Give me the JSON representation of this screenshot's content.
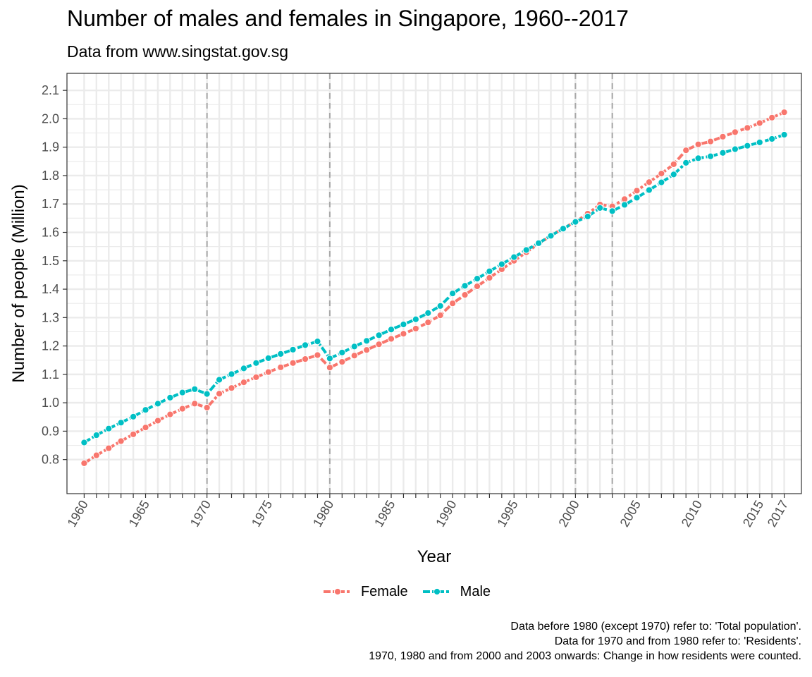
{
  "title": "Number of males and females in Singapore, 1960--2017",
  "subtitle": "Data from www.singstat.gov.sg",
  "caption": [
    "Data before 1980 (except 1970) refer to: 'Total population'.",
    "Data for 1970 and from 1980 refer to: 'Residents'.",
    "1970, 1980 and from 2000 and 2003 onwards: Change in how residents were counted."
  ],
  "chart_data": {
    "type": "line",
    "xlabel": "Year",
    "ylabel": "Number of people (Million)",
    "xlim": [
      1958.6,
      2018.4
    ],
    "ylim": [
      0.68,
      2.16
    ],
    "x_major_ticks": [
      1960,
      1965,
      1970,
      1975,
      1980,
      1985,
      1990,
      1995,
      2000,
      2005,
      2010,
      2015,
      2017
    ],
    "y_ticks": [
      0.8,
      0.9,
      1.0,
      1.1,
      1.2,
      1.3,
      1.4,
      1.5,
      1.6,
      1.7,
      1.8,
      1.9,
      2.0,
      2.1
    ],
    "vlines": [
      1970,
      1980,
      2000,
      2003
    ],
    "grid": true,
    "legend": "bottom",
    "x": [
      1960,
      1961,
      1962,
      1963,
      1964,
      1965,
      1966,
      1967,
      1968,
      1969,
      1970,
      1971,
      1972,
      1973,
      1974,
      1975,
      1976,
      1977,
      1978,
      1979,
      1980,
      1981,
      1982,
      1983,
      1984,
      1985,
      1986,
      1987,
      1988,
      1989,
      1990,
      1991,
      1992,
      1993,
      1994,
      1995,
      1996,
      1997,
      1998,
      1999,
      2000,
      2001,
      2002,
      2003,
      2004,
      2005,
      2006,
      2007,
      2008,
      2009,
      2010,
      2011,
      2012,
      2013,
      2014,
      2015,
      2016,
      2017
    ],
    "series": [
      {
        "name": "Female",
        "color": "#F8766D",
        "values": [
          0.787,
          0.815,
          0.84,
          0.865,
          0.889,
          0.913,
          0.937,
          0.959,
          0.979,
          0.997,
          0.983,
          1.032,
          1.052,
          1.072,
          1.09,
          1.108,
          1.125,
          1.14,
          1.154,
          1.168,
          1.124,
          1.144,
          1.166,
          1.186,
          1.206,
          1.225,
          1.243,
          1.261,
          1.283,
          1.308,
          1.35,
          1.38,
          1.41,
          1.44,
          1.47,
          1.5,
          1.53,
          1.56,
          1.588,
          1.615,
          1.637,
          1.666,
          1.698,
          1.692,
          1.717,
          1.747,
          1.777,
          1.807,
          1.84,
          1.889,
          1.91,
          1.92,
          1.937,
          1.953,
          1.968,
          1.985,
          2.004,
          2.023
        ]
      },
      {
        "name": "Male",
        "color": "#00BFC4",
        "values": [
          0.86,
          0.886,
          0.909,
          0.93,
          0.951,
          0.975,
          0.997,
          1.018,
          1.036,
          1.048,
          1.031,
          1.081,
          1.101,
          1.121,
          1.14,
          1.157,
          1.172,
          1.187,
          1.203,
          1.216,
          1.156,
          1.177,
          1.198,
          1.218,
          1.238,
          1.258,
          1.276,
          1.294,
          1.316,
          1.341,
          1.385,
          1.412,
          1.437,
          1.463,
          1.488,
          1.513,
          1.538,
          1.562,
          1.588,
          1.613,
          1.637,
          1.656,
          1.686,
          1.675,
          1.697,
          1.722,
          1.749,
          1.776,
          1.804,
          1.845,
          1.861,
          1.868,
          1.88,
          1.893,
          1.905,
          1.917,
          1.929,
          1.944
        ]
      }
    ]
  }
}
